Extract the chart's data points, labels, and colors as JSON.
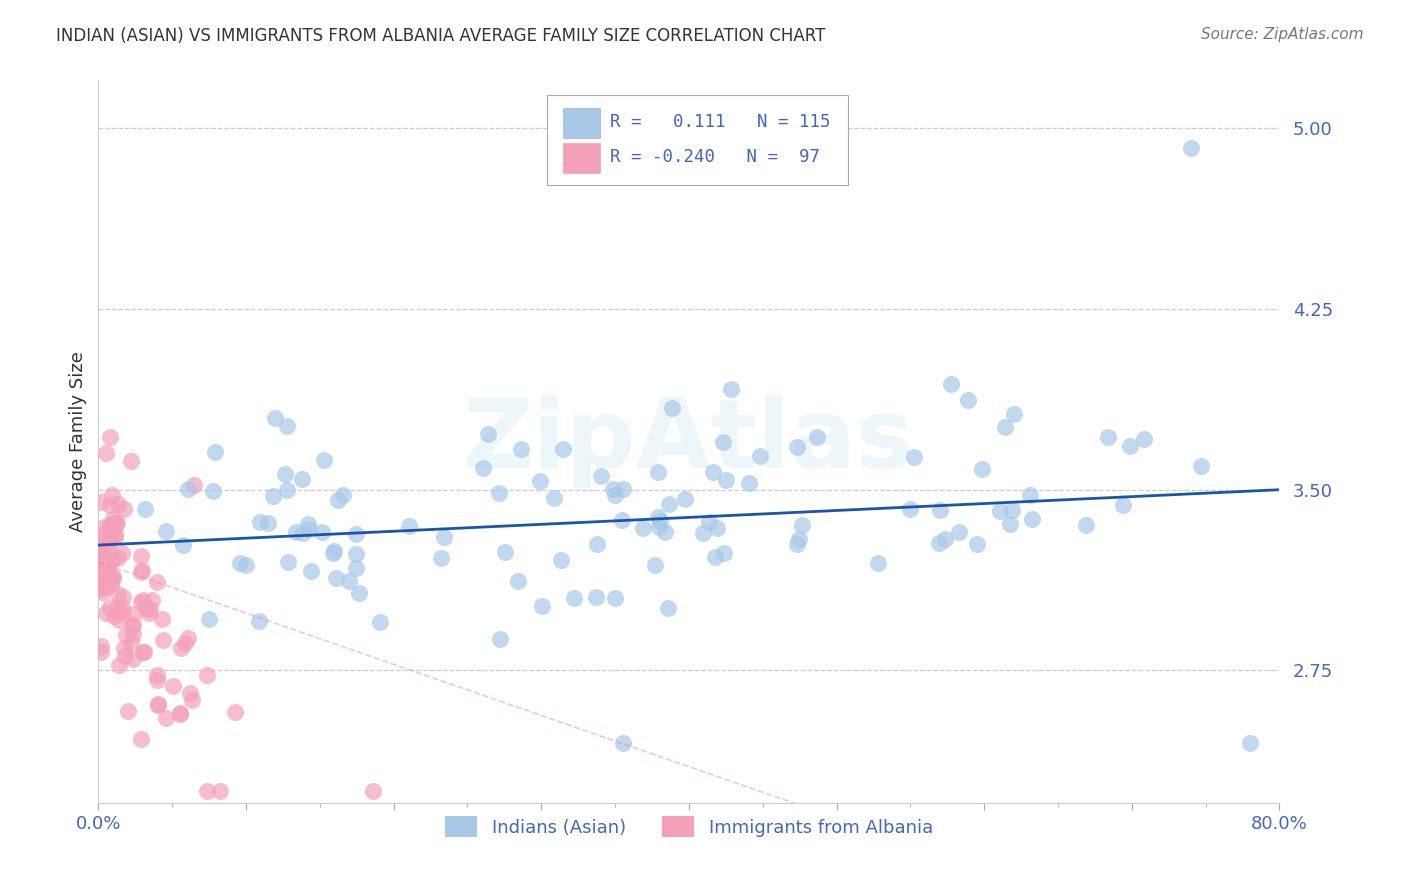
{
  "title": "INDIAN (ASIAN) VS IMMIGRANTS FROM ALBANIA AVERAGE FAMILY SIZE CORRELATION CHART",
  "source": "Source: ZipAtlas.com",
  "ylabel": "Average Family Size",
  "R1": 0.111,
  "N1": 115,
  "R2": -0.24,
  "N2": 97,
  "legend_label_1": "Indians (Asian)",
  "legend_label_2": "Immigrants from Albania",
  "color1": "#a8c8e8",
  "color2": "#f4a0b8",
  "trend_color1": "#1a55aa",
  "trend_color2": "#dd8899",
  "xlim": [
    0.0,
    0.8
  ],
  "ylim": [
    2.2,
    5.2
  ],
  "yticks": [
    2.75,
    3.5,
    4.25,
    5.0
  ],
  "xticks": [
    0.0,
    0.1,
    0.2,
    0.3,
    0.4,
    0.5,
    0.6,
    0.7,
    0.8
  ],
  "xticklabels_show": [
    "0.0%",
    "80.0%"
  ],
  "watermark": "ZipAtlas",
  "background_color": "#ffffff",
  "grid_color": "#cccccc",
  "tick_color": "#4466bb",
  "title_color": "#333333",
  "source_color": "#777777"
}
